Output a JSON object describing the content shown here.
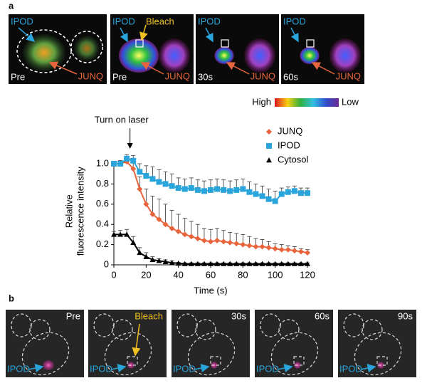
{
  "panel_labels": [
    "a",
    "b"
  ],
  "panel_a_images": [
    {
      "time": "Pre",
      "annotations": [
        "IPOD",
        "JUNQ"
      ]
    },
    {
      "time": "Pre",
      "annotations": [
        "IPOD",
        "Bleach",
        "JUNQ"
      ]
    },
    {
      "time": "30s",
      "annotations": [
        "IPOD",
        "JUNQ"
      ]
    },
    {
      "time": "60s",
      "annotations": [
        "IPOD",
        "JUNQ"
      ]
    }
  ],
  "color_scale": {
    "high": "High",
    "low": "Low"
  },
  "chart_data": {
    "type": "line",
    "annotation": "Turn on laser",
    "annotation_x": 10,
    "x_label": "Time (s)",
    "y_label": [
      "Relative",
      "fluorescence intensity"
    ],
    "x": [
      0,
      4,
      8,
      12,
      16,
      20,
      24,
      28,
      32,
      36,
      40,
      44,
      48,
      52,
      56,
      60,
      64,
      68,
      72,
      76,
      80,
      84,
      88,
      92,
      96,
      100,
      104,
      108,
      112,
      116,
      120
    ],
    "series": [
      {
        "name": "JUNQ",
        "color": "#e8643c",
        "marker": "diamond",
        "values": [
          1.0,
          1.0,
          1.02,
          0.95,
          0.75,
          0.6,
          0.5,
          0.45,
          0.4,
          0.36,
          0.33,
          0.3,
          0.28,
          0.26,
          0.24,
          0.23,
          0.24,
          0.23,
          0.22,
          0.21,
          0.2,
          0.19,
          0.18,
          0.18,
          0.17,
          0.16,
          0.15,
          0.15,
          0.14,
          0.13,
          0.12
        ],
        "errors": [
          0.02,
          0.03,
          0.04,
          0.06,
          0.12,
          0.15,
          0.18,
          0.2,
          0.2,
          0.18,
          0.17,
          0.16,
          0.15,
          0.14,
          0.12,
          0.12,
          0.12,
          0.11,
          0.1,
          0.1,
          0.1,
          0.09,
          0.08,
          0.07,
          0.06,
          0.05,
          0.05,
          0.04,
          0.04,
          0.03,
          0.03
        ]
      },
      {
        "name": "IPOD",
        "color": "#2aa5dc",
        "marker": "square",
        "values": [
          1.0,
          1.0,
          1.05,
          1.03,
          0.92,
          0.88,
          0.85,
          0.82,
          0.8,
          0.78,
          0.76,
          0.75,
          0.76,
          0.74,
          0.73,
          0.74,
          0.75,
          0.74,
          0.73,
          0.74,
          0.75,
          0.72,
          0.7,
          0.68,
          0.65,
          0.63,
          0.7,
          0.72,
          0.73,
          0.71,
          0.71
        ],
        "errors": [
          0.02,
          0.03,
          0.04,
          0.05,
          0.08,
          0.1,
          0.12,
          0.12,
          0.12,
          0.12,
          0.1,
          0.1,
          0.1,
          0.1,
          0.1,
          0.1,
          0.1,
          0.1,
          0.1,
          0.1,
          0.1,
          0.1,
          0.1,
          0.1,
          0.1,
          0.1,
          0.06,
          0.05,
          0.05,
          0.05,
          0.05
        ]
      },
      {
        "name": "Cytosol",
        "color": "#000000",
        "marker": "triangle",
        "values": [
          0.3,
          0.3,
          0.3,
          0.22,
          0.12,
          0.08,
          0.05,
          0.04,
          0.03,
          0.02,
          0.015,
          0.01,
          0.01,
          0.01,
          0.01,
          0.01,
          0.01,
          0.01,
          0.01,
          0.01,
          0.01,
          0.01,
          0.01,
          0.01,
          0.01,
          0.01,
          0.01,
          0.01,
          0.01,
          0.01,
          0.01
        ],
        "errors": [
          0.03,
          0.04,
          0.05,
          0.06,
          0.05,
          0.04,
          0.03,
          0.02,
          0.02,
          0.02,
          0.01,
          0.01,
          0.01,
          0.01,
          0.01,
          0.01,
          0.01,
          0.01,
          0.01,
          0.01,
          0.01,
          0.01,
          0.01,
          0.01,
          0.01,
          0.01,
          0.01,
          0.01,
          0.01,
          0.01,
          0.01
        ]
      }
    ],
    "xlim": [
      0,
      120
    ],
    "xticks": [
      0,
      20,
      40,
      60,
      80,
      100,
      120
    ],
    "ylim": [
      0,
      1.2
    ],
    "yticks": [
      0,
      {
        "value": 0.2,
        "label": "0.2"
      },
      {
        "value": 0.4,
        "label": "0.4"
      },
      {
        "value": 0.6,
        "label": "0.6"
      },
      {
        "value": 0.8,
        "label": "0.8"
      },
      {
        "value": 1.0,
        "label": "1.0"
      }
    ],
    "legend": "upper right"
  },
  "panel_b_images": [
    {
      "time": "Pre",
      "ipod": "IPOD"
    },
    {
      "time": "Bleach",
      "ipod": "IPOD"
    },
    {
      "time": "30s",
      "ipod": "IPOD"
    },
    {
      "time": "60s",
      "ipod": "IPOD"
    },
    {
      "time": "90s",
      "ipod": "IPOD"
    }
  ]
}
